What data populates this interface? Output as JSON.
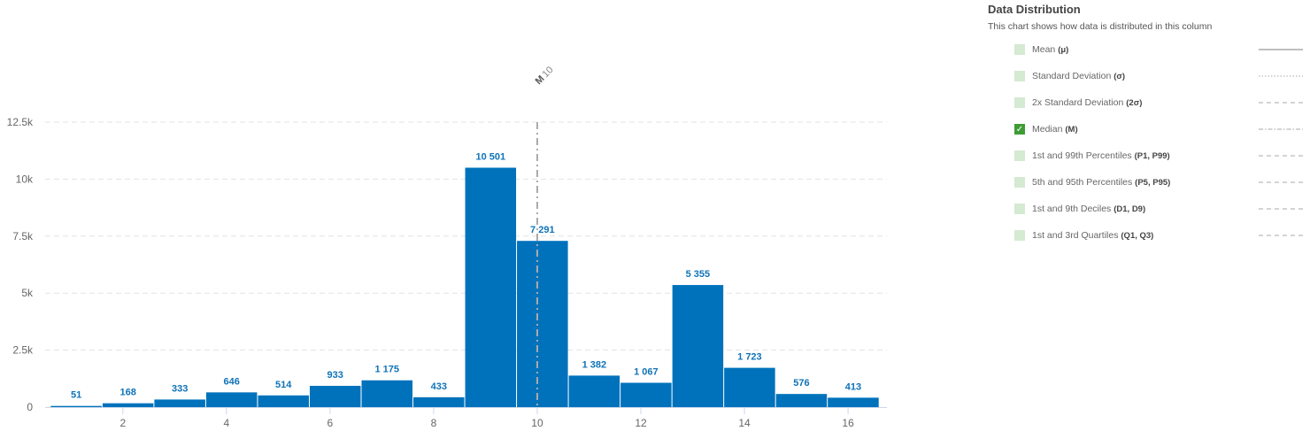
{
  "legend": {
    "title": "Data Distribution",
    "subtitle": "This chart shows how data is distributed in this column",
    "items": [
      {
        "label": "Mean",
        "symbol": "(μ)",
        "checked": false,
        "line": "solid"
      },
      {
        "label": "Standard Deviation",
        "symbol": "(σ)",
        "checked": false,
        "line": "dotted"
      },
      {
        "label": "2x Standard Deviation",
        "symbol": "(2σ)",
        "checked": false,
        "line": "dashed"
      },
      {
        "label": "Median",
        "symbol": "(M)",
        "checked": true,
        "line": "dashdot"
      },
      {
        "label": "1st and 99th Percentiles",
        "symbol": "(P1, P99)",
        "checked": false,
        "line": "dashed"
      },
      {
        "label": "5th and 95th Percentiles",
        "symbol": "(P5, P95)",
        "checked": false,
        "line": "dashed"
      },
      {
        "label": "1st and 9th Deciles",
        "symbol": "(D1, D9)",
        "checked": false,
        "line": "dashed"
      },
      {
        "label": "1st and 3rd Quartiles",
        "symbol": "(Q1, Q3)",
        "checked": false,
        "line": "dashed"
      }
    ]
  },
  "chart_data": {
    "type": "bar",
    "title": "",
    "xlabel": "",
    "ylabel": "",
    "bin_lower_edges": [
      0.6,
      1.6,
      2.6,
      3.6,
      4.6,
      5.6,
      6.6,
      7.6,
      8.6,
      9.6,
      10.6,
      11.6,
      12.6,
      13.6,
      14.6,
      15.6
    ],
    "bin_width": 1,
    "values": [
      51,
      168,
      333,
      646,
      514,
      933,
      1175,
      433,
      10501,
      7291,
      1382,
      1067,
      5355,
      1723,
      576,
      413
    ],
    "value_labels": [
      "51",
      "168",
      "333",
      "646",
      "514",
      "933",
      "1 175",
      "433",
      "10 501",
      "7 291",
      "1 382",
      "1 067",
      "5 355",
      "1 723",
      "576",
      "413"
    ],
    "xlim": [
      0.5,
      16.75
    ],
    "ylim": [
      0,
      12500
    ],
    "x_ticks": [
      2,
      4,
      6,
      8,
      10,
      12,
      14,
      16
    ],
    "x_tick_labels": [
      "2",
      "4",
      "6",
      "8",
      "10",
      "12",
      "14",
      "16"
    ],
    "y_ticks": [
      0,
      2500,
      5000,
      7500,
      10000,
      12500
    ],
    "y_tick_labels": [
      "0",
      "2.5k",
      "5k",
      "7.5k",
      "10k",
      "12.5k"
    ],
    "grid": true,
    "bar_color": "#0072bc",
    "label_color": "#0f73b8",
    "median": {
      "value": 10,
      "label": "M",
      "value_label": "10"
    },
    "legend_position": "right"
  }
}
